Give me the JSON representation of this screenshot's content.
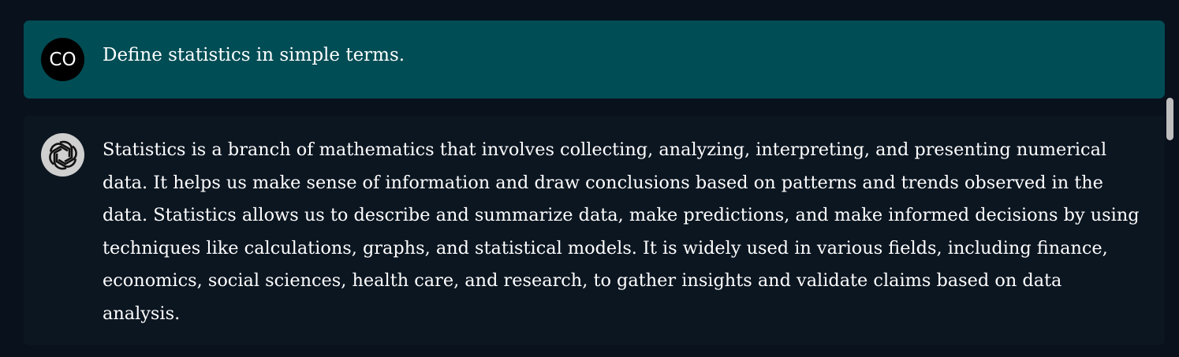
{
  "conversation": {
    "user_message": {
      "avatar_initials": "CO",
      "text": "Define statistics in simple terms."
    },
    "assistant_message": {
      "avatar_icon": "chatgpt-logo-icon",
      "text": "Statistics is a branch of mathematics that involves collecting, analyzing, interpreting, and presenting numerical data. It helps us make sense of information and draw conclusions based on patterns and trends observed in the data. Statistics allows us to describe and summarize data, make predictions, and make informed decisions by using techniques like calculations, graphs, and statistical models. It is widely used in various fields, including finance, economics, social sciences, health care, and research, to gather insights and validate claims based on data analysis."
    }
  },
  "colors": {
    "page_background": "#09111c",
    "user_message_background": "#014d55",
    "assistant_message_background": "#0c1621",
    "text": "#ffffff"
  }
}
